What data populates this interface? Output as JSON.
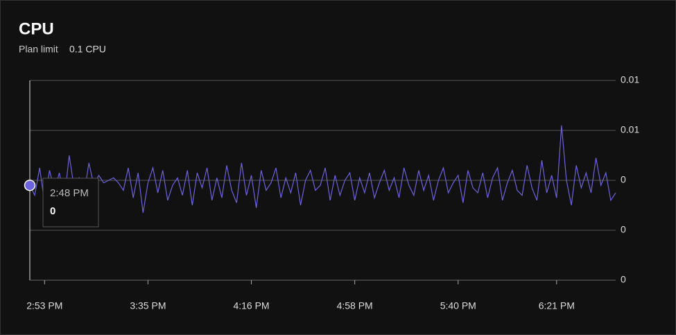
{
  "header": {
    "title": "CPU",
    "plan_limit_label": "Plan limit",
    "plan_limit_value": "0.1 CPU"
  },
  "chart_data": {
    "type": "line",
    "categories": [
      null,
      null,
      null,
      "2:53 PM",
      null,
      null,
      null,
      null,
      null,
      null,
      null,
      null,
      null,
      null,
      null,
      null,
      null,
      null,
      null,
      null,
      null,
      null,
      null,
      null,
      "3:35 PM",
      null,
      null,
      null,
      null,
      null,
      null,
      null,
      null,
      null,
      null,
      null,
      null,
      null,
      null,
      null,
      null,
      null,
      null,
      null,
      null,
      "4:16 PM",
      null,
      null,
      null,
      null,
      null,
      null,
      null,
      null,
      null,
      null,
      null,
      null,
      null,
      null,
      null,
      null,
      null,
      null,
      null,
      null,
      "4:58 PM",
      null,
      null,
      null,
      null,
      null,
      null,
      null,
      null,
      null,
      null,
      null,
      null,
      null,
      null,
      null,
      null,
      null,
      null,
      null,
      null,
      "5:40 PM",
      null,
      null,
      null,
      null,
      null,
      null,
      null,
      null,
      null,
      null,
      null,
      null,
      null,
      null,
      null,
      null,
      null,
      null,
      null,
      "6:21 PM",
      null,
      null,
      null,
      null,
      null,
      null,
      null,
      null,
      null,
      null,
      null,
      null
    ],
    "series": [
      {
        "color": "#6c63e0",
        "values": [
          0.0038,
          0.0034,
          0.0045,
          0.0031,
          0.0044,
          0.0036,
          0.0043,
          0.0032,
          0.005,
          0.0037,
          0.0041,
          0.0034,
          0.0047,
          0.0038,
          0.0042,
          0.0039,
          0.004,
          0.0041,
          0.0039,
          0.0036,
          0.0045,
          0.0033,
          0.0043,
          0.0027,
          0.0039,
          0.0045,
          0.0035,
          0.0044,
          0.0032,
          0.0038,
          0.0041,
          0.0034,
          0.0044,
          0.003,
          0.0043,
          0.0037,
          0.0045,
          0.0032,
          0.0041,
          0.0033,
          0.0046,
          0.0036,
          0.0031,
          0.0047,
          0.0034,
          0.0042,
          0.0029,
          0.0044,
          0.0036,
          0.0039,
          0.0045,
          0.0033,
          0.0041,
          0.0035,
          0.0043,
          0.003,
          0.004,
          0.0044,
          0.0036,
          0.0038,
          0.0045,
          0.0032,
          0.0042,
          0.0034,
          0.004,
          0.0043,
          0.0032,
          0.0041,
          0.0035,
          0.0043,
          0.0033,
          0.0039,
          0.0044,
          0.0036,
          0.0041,
          0.0033,
          0.0045,
          0.0038,
          0.0034,
          0.0044,
          0.0036,
          0.0042,
          0.0032,
          0.004,
          0.0045,
          0.0035,
          0.0039,
          0.0042,
          0.0031,
          0.0044,
          0.0037,
          0.0035,
          0.0043,
          0.0033,
          0.0041,
          0.0045,
          0.0032,
          0.0039,
          0.0044,
          0.0036,
          0.0034,
          0.0046,
          0.0037,
          0.0032,
          0.0048,
          0.0035,
          0.0042,
          0.0033,
          0.0062,
          0.004,
          0.003,
          0.0046,
          0.0037,
          0.0043,
          0.0035,
          0.0049,
          0.0038,
          0.0043,
          0.0032,
          0.0035
        ]
      }
    ],
    "ylim": [
      0,
      0.008
    ],
    "yticks": [
      {
        "value": 0.008,
        "label": "0.01"
      },
      {
        "value": 0.006,
        "label": "0.01"
      },
      {
        "value": 0.004,
        "label": "0"
      },
      {
        "value": 0.002,
        "label": "0"
      },
      {
        "value": 0,
        "label": "0"
      }
    ],
    "grid": true,
    "tooltip": {
      "x": "2:48 PM",
      "value": "0"
    }
  }
}
